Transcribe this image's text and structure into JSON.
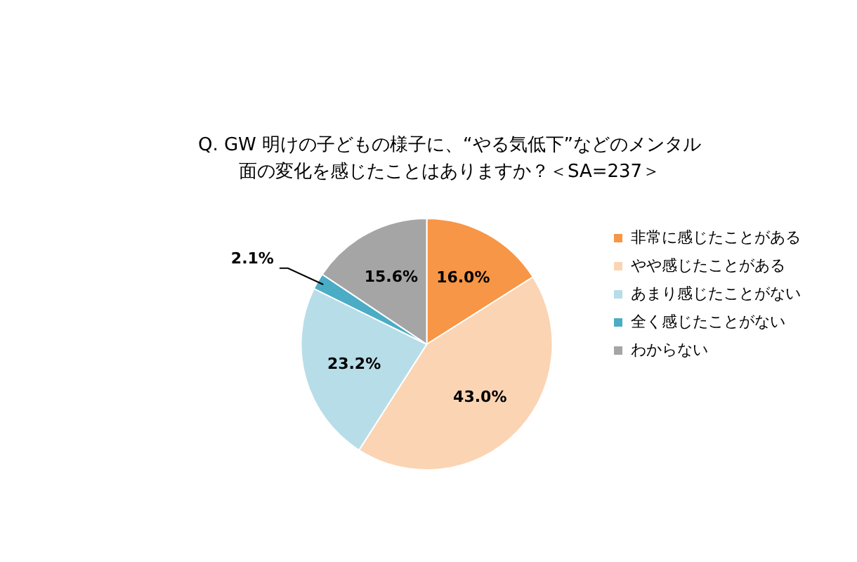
{
  "chart_data": {
    "type": "pie",
    "title": "Q. GW 明けの子どもの様子に、“やる気低下”などのメンタル面の変化を感じたことはありますか？＜SA=237＞",
    "categories": [
      "非常に感じたことがある",
      "やや感じたことがある",
      "あまり感じたことがない",
      "全く感じたことがない",
      "わからない"
    ],
    "values": [
      16.0,
      43.0,
      23.2,
      2.1,
      15.6
    ],
    "value_labels": [
      "16.0%",
      "43.0%",
      "23.2%",
      "2.1%",
      "15.6%"
    ],
    "colors": [
      "#f79646",
      "#fbd4b4",
      "#b7dde8",
      "#4bacc6",
      "#a5a5a5"
    ],
    "legend": "right"
  }
}
